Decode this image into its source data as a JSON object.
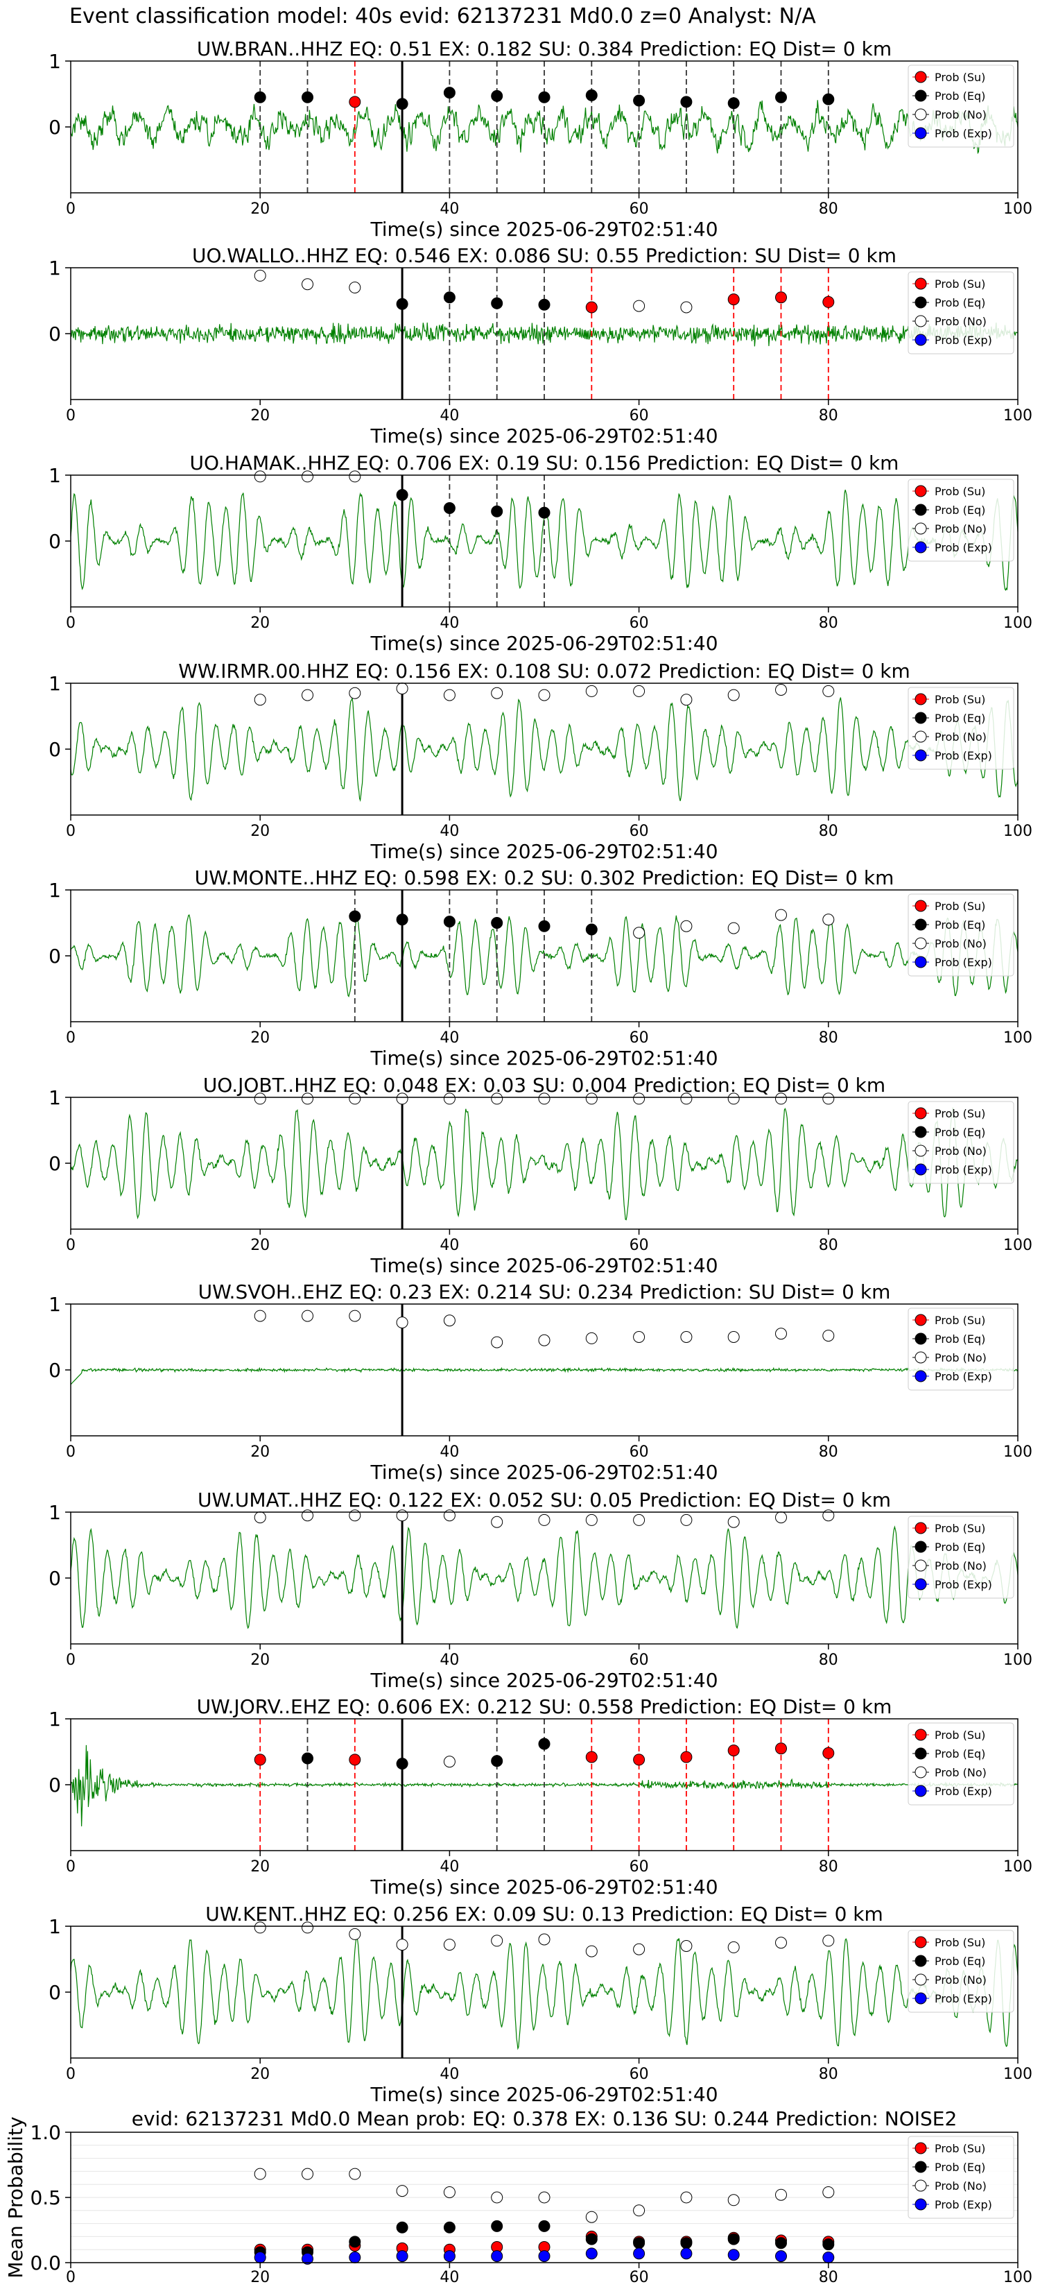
{
  "suptitle": "Event classification model: 40s evid: 62137231 Md0.0 z=0 Analyst: N/A",
  "legend": [
    "Prob (Su)",
    "Prob (Eq)",
    "Prob (No)",
    "Prob (Exp)"
  ],
  "colors": {
    "su": "#ff0000",
    "eq": "#000000",
    "no": "#ffffff",
    "exp": "#0000ff",
    "waveform": "#008000",
    "su_line": "#ff0000",
    "eq_line": "#333333"
  },
  "x_ticks": [
    "0",
    "20",
    "40",
    "60",
    "80",
    "100"
  ],
  "x_label": "Time(s) since 2025-06-29T02:51:40",
  "chart_data": [
    {
      "type": "line",
      "title": "UW.BRAN..HHZ   EQ: 0.51   EX: 0.182   SU: 0.384   Prediction: EQ    Dist= 0 km",
      "xlabel": "Time(s) since 2025-06-29T02:51:40",
      "xlim": [
        0,
        100
      ],
      "ylim": [
        -1,
        1
      ],
      "y_ticks": [
        "1",
        "0"
      ],
      "origin_time": 35,
      "waveform": "broadband",
      "amp": 0.55,
      "markers": [
        {
          "t": 20,
          "p": 0.45,
          "cls": "eq"
        },
        {
          "t": 25,
          "p": 0.45,
          "cls": "eq"
        },
        {
          "t": 30,
          "p": 0.38,
          "cls": "su"
        },
        {
          "t": 35,
          "p": 0.35,
          "cls": "eq"
        },
        {
          "t": 40,
          "p": 0.52,
          "cls": "eq"
        },
        {
          "t": 45,
          "p": 0.47,
          "cls": "eq"
        },
        {
          "t": 50,
          "p": 0.45,
          "cls": "eq"
        },
        {
          "t": 55,
          "p": 0.48,
          "cls": "eq"
        },
        {
          "t": 60,
          "p": 0.4,
          "cls": "eq"
        },
        {
          "t": 65,
          "p": 0.38,
          "cls": "eq"
        },
        {
          "t": 70,
          "p": 0.36,
          "cls": "eq"
        },
        {
          "t": 75,
          "p": 0.45,
          "cls": "eq"
        },
        {
          "t": 80,
          "p": 0.42,
          "cls": "eq"
        }
      ]
    },
    {
      "type": "line",
      "title": "UO.WALLO..HHZ   EQ: 0.546   EX: 0.086   SU: 0.55   Prediction: SU    Dist= 0 km",
      "xlabel": "Time(s) since 2025-06-29T02:51:40",
      "xlim": [
        0,
        100
      ],
      "ylim": [
        -1,
        1
      ],
      "y_ticks": [
        "1",
        "0"
      ],
      "origin_time": 35,
      "waveform": "noisy",
      "amp": 0.45,
      "markers": [
        {
          "t": 20,
          "p": 0.88,
          "cls": "no"
        },
        {
          "t": 25,
          "p": 0.75,
          "cls": "no"
        },
        {
          "t": 30,
          "p": 0.7,
          "cls": "no"
        },
        {
          "t": 35,
          "p": 0.45,
          "cls": "eq"
        },
        {
          "t": 40,
          "p": 0.55,
          "cls": "eq"
        },
        {
          "t": 45,
          "p": 0.46,
          "cls": "eq"
        },
        {
          "t": 50,
          "p": 0.44,
          "cls": "eq"
        },
        {
          "t": 55,
          "p": 0.4,
          "cls": "su"
        },
        {
          "t": 60,
          "p": 0.42,
          "cls": "no"
        },
        {
          "t": 65,
          "p": 0.4,
          "cls": "no"
        },
        {
          "t": 70,
          "p": 0.52,
          "cls": "su"
        },
        {
          "t": 75,
          "p": 0.55,
          "cls": "su"
        },
        {
          "t": 80,
          "p": 0.48,
          "cls": "su"
        }
      ]
    },
    {
      "type": "line",
      "title": "UO.HAMAK..HHZ   EQ: 0.706   EX: 0.19   SU: 0.156   Prediction: EQ    Dist= 0 km",
      "xlabel": "Time(s) since 2025-06-29T02:51:40",
      "xlim": [
        0,
        100
      ],
      "ylim": [
        -1,
        1
      ],
      "y_ticks": [
        "1",
        "0"
      ],
      "origin_time": 35,
      "waveform": "wavy",
      "amp": 0.6,
      "markers": [
        {
          "t": 20,
          "p": 0.98,
          "cls": "no"
        },
        {
          "t": 25,
          "p": 0.98,
          "cls": "no"
        },
        {
          "t": 30,
          "p": 0.98,
          "cls": "no"
        },
        {
          "t": 35,
          "p": 0.7,
          "cls": "eq"
        },
        {
          "t": 40,
          "p": 0.5,
          "cls": "eq"
        },
        {
          "t": 45,
          "p": 0.45,
          "cls": "eq"
        },
        {
          "t": 50,
          "p": 0.43,
          "cls": "eq"
        }
      ]
    },
    {
      "type": "line",
      "title": "WW.IRMR.00.HHZ   EQ: 0.156   EX: 0.108   SU: 0.072   Prediction: EQ    Dist= 0 km",
      "xlabel": "Time(s) since 2025-06-29T02:51:40",
      "xlim": [
        0,
        100
      ],
      "ylim": [
        -1,
        1
      ],
      "y_ticks": [
        "1",
        "0"
      ],
      "origin_time": 35,
      "waveform": "wavy",
      "amp": 0.55,
      "markers": [
        {
          "t": 20,
          "p": 0.75,
          "cls": "no"
        },
        {
          "t": 25,
          "p": 0.82,
          "cls": "no"
        },
        {
          "t": 30,
          "p": 0.85,
          "cls": "no"
        },
        {
          "t": 35,
          "p": 0.92,
          "cls": "no"
        },
        {
          "t": 40,
          "p": 0.82,
          "cls": "no"
        },
        {
          "t": 45,
          "p": 0.85,
          "cls": "no"
        },
        {
          "t": 50,
          "p": 0.82,
          "cls": "no"
        },
        {
          "t": 55,
          "p": 0.88,
          "cls": "no"
        },
        {
          "t": 60,
          "p": 0.88,
          "cls": "no"
        },
        {
          "t": 65,
          "p": 0.75,
          "cls": "no"
        },
        {
          "t": 70,
          "p": 0.82,
          "cls": "no"
        },
        {
          "t": 75,
          "p": 0.9,
          "cls": "no"
        },
        {
          "t": 80,
          "p": 0.88,
          "cls": "no"
        }
      ]
    },
    {
      "type": "line",
      "title": "UW.MONTE..HHZ   EQ: 0.598   EX: 0.2   SU: 0.302   Prediction: EQ    Dist= 0 km",
      "xlabel": "Time(s) since 2025-06-29T02:51:40",
      "xlim": [
        0,
        100
      ],
      "ylim": [
        -1,
        1
      ],
      "y_ticks": [
        "1",
        "0"
      ],
      "origin_time": 35,
      "waveform": "wavy",
      "amp": 0.5,
      "markers": [
        {
          "t": 30,
          "p": 0.6,
          "cls": "eq"
        },
        {
          "t": 35,
          "p": 0.55,
          "cls": "eq"
        },
        {
          "t": 40,
          "p": 0.52,
          "cls": "eq"
        },
        {
          "t": 45,
          "p": 0.5,
          "cls": "eq"
        },
        {
          "t": 50,
          "p": 0.45,
          "cls": "eq"
        },
        {
          "t": 55,
          "p": 0.4,
          "cls": "eq"
        },
        {
          "t": 60,
          "p": 0.35,
          "cls": "no"
        },
        {
          "t": 65,
          "p": 0.45,
          "cls": "no"
        },
        {
          "t": 70,
          "p": 0.42,
          "cls": "no"
        },
        {
          "t": 75,
          "p": 0.62,
          "cls": "no"
        },
        {
          "t": 80,
          "p": 0.55,
          "cls": "no"
        }
      ]
    },
    {
      "type": "line",
      "title": "UO.JOBT..HHZ   EQ: 0.048   EX: 0.03   SU: 0.004   Prediction: EQ    Dist= 0 km",
      "xlabel": "Time(s) since 2025-06-29T02:51:40",
      "xlim": [
        0,
        100
      ],
      "ylim": [
        -1,
        1
      ],
      "y_ticks": [
        "1",
        "0"
      ],
      "origin_time": 35,
      "waveform": "wavy",
      "amp": 0.6,
      "markers": [
        {
          "t": 20,
          "p": 0.98,
          "cls": "no"
        },
        {
          "t": 25,
          "p": 0.98,
          "cls": "no"
        },
        {
          "t": 30,
          "p": 0.98,
          "cls": "no"
        },
        {
          "t": 35,
          "p": 0.98,
          "cls": "no"
        },
        {
          "t": 40,
          "p": 0.98,
          "cls": "no"
        },
        {
          "t": 45,
          "p": 0.98,
          "cls": "no"
        },
        {
          "t": 50,
          "p": 0.98,
          "cls": "no"
        },
        {
          "t": 55,
          "p": 0.98,
          "cls": "no"
        },
        {
          "t": 60,
          "p": 0.98,
          "cls": "no"
        },
        {
          "t": 65,
          "p": 0.98,
          "cls": "no"
        },
        {
          "t": 70,
          "p": 0.98,
          "cls": "no"
        },
        {
          "t": 75,
          "p": 0.98,
          "cls": "no"
        },
        {
          "t": 80,
          "p": 0.98,
          "cls": "no"
        }
      ]
    },
    {
      "type": "line",
      "title": "UW.SVOH..EHZ   EQ: 0.23  EX: 0.214  SU: 0.234   Prediction: SU    Dist= 0 km",
      "xlabel": "Time(s) since 2025-06-29T02:51:40",
      "xlim": [
        0,
        100
      ],
      "ylim": [
        -1,
        1
      ],
      "y_ticks": [
        "1",
        "0"
      ],
      "origin_time": 35,
      "waveform": "quiet",
      "amp": 0.1,
      "markers": [
        {
          "t": 20,
          "p": 0.82,
          "cls": "no"
        },
        {
          "t": 25,
          "p": 0.82,
          "cls": "no"
        },
        {
          "t": 30,
          "p": 0.82,
          "cls": "no"
        },
        {
          "t": 35,
          "p": 0.72,
          "cls": "no"
        },
        {
          "t": 40,
          "p": 0.75,
          "cls": "no"
        },
        {
          "t": 45,
          "p": 0.42,
          "cls": "no"
        },
        {
          "t": 50,
          "p": 0.45,
          "cls": "no"
        },
        {
          "t": 55,
          "p": 0.48,
          "cls": "no"
        },
        {
          "t": 60,
          "p": 0.5,
          "cls": "no"
        },
        {
          "t": 65,
          "p": 0.5,
          "cls": "no"
        },
        {
          "t": 70,
          "p": 0.5,
          "cls": "no"
        },
        {
          "t": 75,
          "p": 0.55,
          "cls": "no"
        },
        {
          "t": 80,
          "p": 0.52,
          "cls": "no"
        }
      ]
    },
    {
      "type": "line",
      "title": "UW.UMAT..HHZ   EQ: 0.122  EX: 0.052  SU: 0.05   Prediction: EQ    Dist= 0 km",
      "xlabel": "Time(s) since 2025-06-29T02:51:40",
      "xlim": [
        0,
        100
      ],
      "ylim": [
        -1,
        1
      ],
      "y_ticks": [
        "1",
        "0"
      ],
      "origin_time": 35,
      "waveform": "wavy",
      "amp": 0.55,
      "markers": [
        {
          "t": 20,
          "p": 0.92,
          "cls": "no"
        },
        {
          "t": 25,
          "p": 0.95,
          "cls": "no"
        },
        {
          "t": 30,
          "p": 0.95,
          "cls": "no"
        },
        {
          "t": 35,
          "p": 0.95,
          "cls": "no"
        },
        {
          "t": 40,
          "p": 0.95,
          "cls": "no"
        },
        {
          "t": 45,
          "p": 0.85,
          "cls": "no"
        },
        {
          "t": 50,
          "p": 0.88,
          "cls": "no"
        },
        {
          "t": 55,
          "p": 0.88,
          "cls": "no"
        },
        {
          "t": 60,
          "p": 0.88,
          "cls": "no"
        },
        {
          "t": 65,
          "p": 0.88,
          "cls": "no"
        },
        {
          "t": 70,
          "p": 0.85,
          "cls": "no"
        },
        {
          "t": 75,
          "p": 0.92,
          "cls": "no"
        },
        {
          "t": 80,
          "p": 0.95,
          "cls": "no"
        }
      ]
    },
    {
      "type": "line",
      "title": "UW.JORV..EHZ   EQ: 0.606  EX: 0.212  SU: 0.558   Prediction: EQ    Dist= 0 km",
      "xlabel": "Time(s) since 2025-06-29T02:51:40",
      "xlim": [
        0,
        100
      ],
      "ylim": [
        -1,
        1
      ],
      "y_ticks": [
        "1",
        "0"
      ],
      "origin_time": 35,
      "waveform": "burst",
      "amp": 0.8,
      "markers": [
        {
          "t": 20,
          "p": 0.38,
          "cls": "su"
        },
        {
          "t": 25,
          "p": 0.4,
          "cls": "eq"
        },
        {
          "t": 30,
          "p": 0.38,
          "cls": "su"
        },
        {
          "t": 35,
          "p": 0.32,
          "cls": "eq"
        },
        {
          "t": 40,
          "p": 0.35,
          "cls": "no"
        },
        {
          "t": 45,
          "p": 0.36,
          "cls": "eq"
        },
        {
          "t": 50,
          "p": 0.62,
          "cls": "eq"
        },
        {
          "t": 55,
          "p": 0.42,
          "cls": "su"
        },
        {
          "t": 60,
          "p": 0.38,
          "cls": "su"
        },
        {
          "t": 65,
          "p": 0.42,
          "cls": "su"
        },
        {
          "t": 70,
          "p": 0.52,
          "cls": "su"
        },
        {
          "t": 75,
          "p": 0.55,
          "cls": "su"
        },
        {
          "t": 80,
          "p": 0.48,
          "cls": "su"
        }
      ]
    },
    {
      "type": "line",
      "title": "UW.KENT..HHZ   EQ: 0.256  EX: 0.09  SU: 0.13   Prediction: EQ    Dist= 0 km",
      "xlabel": "Time(s) since 2025-06-29T02:51:40",
      "xlim": [
        0,
        100
      ],
      "ylim": [
        -1,
        1
      ],
      "y_ticks": [
        "1",
        "0"
      ],
      "origin_time": 35,
      "waveform": "wavy",
      "amp": 0.6,
      "markers": [
        {
          "t": 20,
          "p": 0.98,
          "cls": "no"
        },
        {
          "t": 25,
          "p": 0.98,
          "cls": "no"
        },
        {
          "t": 30,
          "p": 0.88,
          "cls": "no"
        },
        {
          "t": 35,
          "p": 0.72,
          "cls": "no"
        },
        {
          "t": 40,
          "p": 0.72,
          "cls": "no"
        },
        {
          "t": 45,
          "p": 0.78,
          "cls": "no"
        },
        {
          "t": 50,
          "p": 0.8,
          "cls": "no"
        },
        {
          "t": 55,
          "p": 0.62,
          "cls": "no"
        },
        {
          "t": 60,
          "p": 0.65,
          "cls": "no"
        },
        {
          "t": 65,
          "p": 0.7,
          "cls": "no"
        },
        {
          "t": 70,
          "p": 0.68,
          "cls": "no"
        },
        {
          "t": 75,
          "p": 0.75,
          "cls": "no"
        },
        {
          "t": 80,
          "p": 0.78,
          "cls": "no"
        }
      ]
    },
    {
      "type": "scatter",
      "title": "evid: 62137231   Md0.0    Mean prob:    EQ: 0.378   EX: 0.136   SU: 0.244    Prediction: NOISE2",
      "xlabel": "",
      "ylabel": "Mean Probability",
      "xlim": [
        0,
        100
      ],
      "ylim": [
        0,
        1
      ],
      "y_ticks": [
        "1.0",
        "0.5",
        "0.0"
      ],
      "grid": true,
      "legend": "top-right",
      "x": [
        20,
        25,
        30,
        35,
        40,
        45,
        50,
        55,
        60,
        65,
        70,
        75,
        80
      ],
      "series": [
        {
          "name": "Prob (Su)",
          "cls": "su",
          "values": [
            0.1,
            0.1,
            0.13,
            0.11,
            0.1,
            0.12,
            0.12,
            0.2,
            0.16,
            0.16,
            0.19,
            0.17,
            0.16
          ]
        },
        {
          "name": "Prob (Eq)",
          "cls": "eq",
          "values": [
            0.08,
            0.08,
            0.16,
            0.27,
            0.27,
            0.28,
            0.28,
            0.18,
            0.15,
            0.15,
            0.18,
            0.15,
            0.14
          ]
        },
        {
          "name": "Prob (No)",
          "cls": "no",
          "values": [
            0.68,
            0.68,
            0.68,
            0.55,
            0.54,
            0.5,
            0.5,
            0.35,
            0.4,
            0.5,
            0.48,
            0.52,
            0.54
          ]
        },
        {
          "name": "Prob (Exp)",
          "cls": "exp",
          "values": [
            0.04,
            0.03,
            0.04,
            0.05,
            0.05,
            0.05,
            0.05,
            0.07,
            0.07,
            0.07,
            0.06,
            0.05,
            0.04
          ]
        }
      ]
    }
  ]
}
